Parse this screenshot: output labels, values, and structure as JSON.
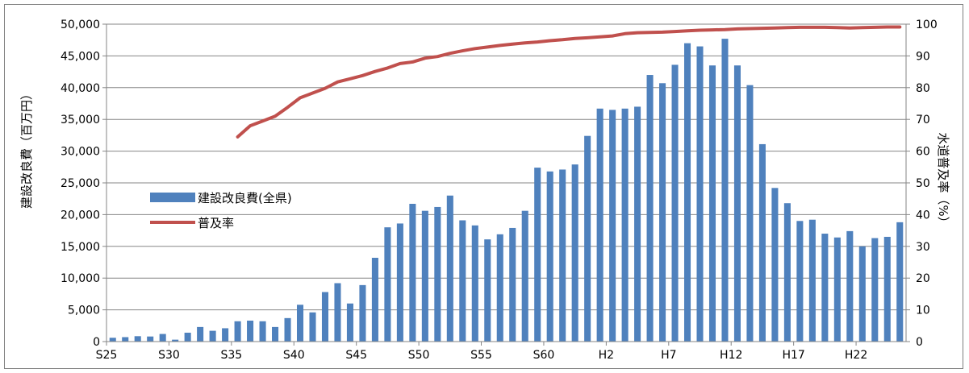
{
  "chart_data": {
    "type": "bar",
    "ylabel_left": "建設改良費（百万円）",
    "ylabel_right": "水道普及率（%）",
    "ylim_left": [
      0,
      50000
    ],
    "ylim_right": [
      0,
      100
    ],
    "yticks_left": [
      "0",
      "5,000",
      "10,000",
      "15,000",
      "20,000",
      "25,000",
      "30,000",
      "35,000",
      "40,000",
      "45,000",
      "50,000"
    ],
    "yticks_right": [
      "0",
      "10",
      "20",
      "30",
      "40",
      "50",
      "60",
      "70",
      "80",
      "90",
      "100"
    ],
    "categories": [
      "S25",
      "S26",
      "S27",
      "S28",
      "S29",
      "S30",
      "S31",
      "S32",
      "S33",
      "S34",
      "S35",
      "S36",
      "S37",
      "S38",
      "S39",
      "S40",
      "S41",
      "S42",
      "S43",
      "S44",
      "S45",
      "S46",
      "S47",
      "S48",
      "S49",
      "S50",
      "S51",
      "S52",
      "S53",
      "S54",
      "S55",
      "S56",
      "S57",
      "S58",
      "S59",
      "S60",
      "S61",
      "S62",
      "S63",
      "H1",
      "H2",
      "H3",
      "H4",
      "H5",
      "H6",
      "H7",
      "H8",
      "H9",
      "H10",
      "H11",
      "H12",
      "H13",
      "H14",
      "H15",
      "H16",
      "H17",
      "H18",
      "H19",
      "H20",
      "H21",
      "H22",
      "H23",
      "H24",
      "H25"
    ],
    "x_tick_labels": [
      "S25",
      "S30",
      "S35",
      "S40",
      "S45",
      "S50",
      "S55",
      "S60",
      "H2",
      "H7",
      "H12",
      "H17",
      "H22"
    ],
    "x_tick_indices": [
      0,
      5,
      10,
      15,
      20,
      25,
      30,
      35,
      40,
      45,
      50,
      55,
      60
    ],
    "legend_position": "left-middle",
    "series": [
      {
        "name": "建設改良費(全県)",
        "type": "bar",
        "axis": "left",
        "color": "#4f81bd",
        "values": [
          600,
          700,
          850,
          800,
          1200,
          300,
          1400,
          2300,
          1700,
          2100,
          3200,
          3300,
          3200,
          2300,
          3700,
          5800,
          4600,
          7800,
          9200,
          6000,
          8900,
          13200,
          18000,
          18600,
          21700,
          20600,
          21200,
          23000,
          19100,
          18300,
          16100,
          16900,
          17900,
          20600,
          27400,
          26800,
          27100,
          27900,
          32400,
          36700,
          36500,
          36700,
          37000,
          42000,
          40700,
          43600,
          47000,
          46500,
          43500,
          47700,
          43500,
          40400,
          31100,
          24200,
          21800,
          19000,
          19200,
          17000,
          16400,
          17400,
          15000,
          16300,
          16500,
          18800
        ]
      },
      {
        "name": "普及率",
        "type": "line",
        "axis": "right",
        "color": "#c0504d",
        "values": [
          null,
          null,
          null,
          null,
          null,
          null,
          null,
          null,
          null,
          null,
          64.5,
          68,
          69.5,
          71,
          73.8,
          76.8,
          78.3,
          79.8,
          81.8,
          82.8,
          83.8,
          85.1,
          86.2,
          87.6,
          88.1,
          89.3,
          89.8,
          90.8,
          91.6,
          92.3,
          92.8,
          93.3,
          93.7,
          94.1,
          94.4,
          94.8,
          95.1,
          95.5,
          95.7,
          96.0,
          96.3,
          97.0,
          97.3,
          97.4,
          97.5,
          97.7,
          97.9,
          98.1,
          98.2,
          98.3,
          98.5,
          98.6,
          98.7,
          98.8,
          98.9,
          99.0,
          99.0,
          99.0,
          98.9,
          98.8,
          98.9,
          99.0,
          99.1,
          99.1
        ]
      }
    ]
  }
}
